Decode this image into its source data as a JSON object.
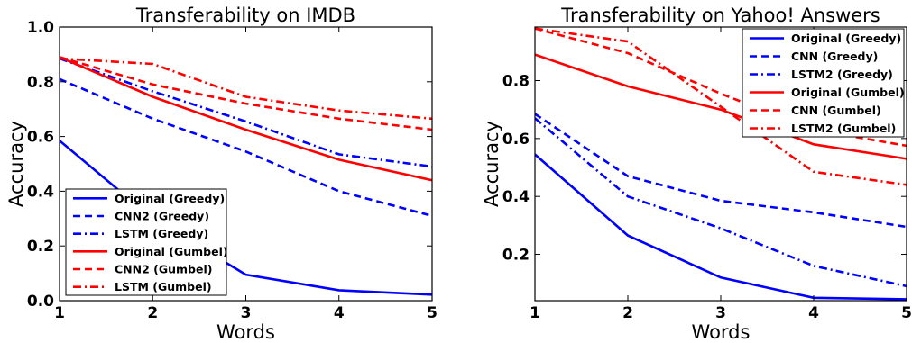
{
  "chart_data": [
    {
      "type": "line",
      "title": "Transferability on IMDB",
      "xlabel": "Words",
      "ylabel": "Accuracy",
      "x": [
        1,
        2,
        3,
        4,
        5
      ],
      "xticks": [
        1,
        2,
        3,
        4,
        5
      ],
      "yticks": [
        0.0,
        0.2,
        0.4,
        0.6,
        0.8,
        1.0
      ],
      "xlim": [
        1,
        5
      ],
      "ylim": [
        0.0,
        1.0
      ],
      "legend_position": "lower-left",
      "grid": false,
      "series": [
        {
          "name": "Original (Greedy)",
          "color": "#0000ff",
          "dash": "solid",
          "values": [
            0.585,
            0.3,
            0.095,
            0.038,
            0.022
          ]
        },
        {
          "name": "CNN2 (Greedy)",
          "color": "#0000ff",
          "dash": "dashed",
          "values": [
            0.81,
            0.665,
            0.545,
            0.4,
            0.31
          ]
        },
        {
          "name": "LSTM (Greedy)",
          "color": "#0000ff",
          "dash": "dashdot",
          "values": [
            0.885,
            0.765,
            0.655,
            0.535,
            0.49
          ]
        },
        {
          "name": "Original (Gumbel)",
          "color": "#ff0000",
          "dash": "solid",
          "values": [
            0.89,
            0.745,
            0.625,
            0.515,
            0.44
          ]
        },
        {
          "name": "CNN2 (Gumbel)",
          "color": "#ff0000",
          "dash": "dashed",
          "values": [
            0.89,
            0.79,
            0.72,
            0.665,
            0.625
          ]
        },
        {
          "name": "LSTM (Gumbel)",
          "color": "#ff0000",
          "dash": "dashdot",
          "values": [
            0.885,
            0.865,
            0.745,
            0.695,
            0.665
          ]
        }
      ]
    },
    {
      "type": "line",
      "title": "Transferability on Yahoo! Answers",
      "xlabel": "Words",
      "ylabel": "Accuracy",
      "x": [
        1,
        2,
        3,
        4,
        5
      ],
      "xticks": [
        1,
        2,
        3,
        4,
        5
      ],
      "yticks": [
        0.2,
        0.4,
        0.6,
        0.8
      ],
      "xlim": [
        1,
        5
      ],
      "ylim": [
        0.04,
        0.985
      ],
      "legend_position": "upper-right",
      "grid": false,
      "series": [
        {
          "name": "Original (Greedy)",
          "color": "#0000ff",
          "dash": "solid",
          "values": [
            0.545,
            0.265,
            0.12,
            0.05,
            0.045
          ]
        },
        {
          "name": "CNN (Greedy)",
          "color": "#0000ff",
          "dash": "dashed",
          "values": [
            0.685,
            0.47,
            0.385,
            0.345,
            0.295
          ]
        },
        {
          "name": "LSTM2 (Greedy)",
          "color": "#0000ff",
          "dash": "dashdot",
          "values": [
            0.67,
            0.4,
            0.29,
            0.16,
            0.09
          ]
        },
        {
          "name": "Original (Gumbel)",
          "color": "#ff0000",
          "dash": "solid",
          "values": [
            0.89,
            0.78,
            0.7,
            0.58,
            0.53
          ]
        },
        {
          "name": "CNN (Gumbel)",
          "color": "#ff0000",
          "dash": "dashed",
          "values": [
            0.98,
            0.895,
            0.755,
            0.63,
            0.575
          ]
        },
        {
          "name": "LSTM2 (Gumbel)",
          "color": "#ff0000",
          "dash": "dashdot",
          "values": [
            0.98,
            0.935,
            0.71,
            0.485,
            0.44
          ]
        }
      ]
    }
  ]
}
